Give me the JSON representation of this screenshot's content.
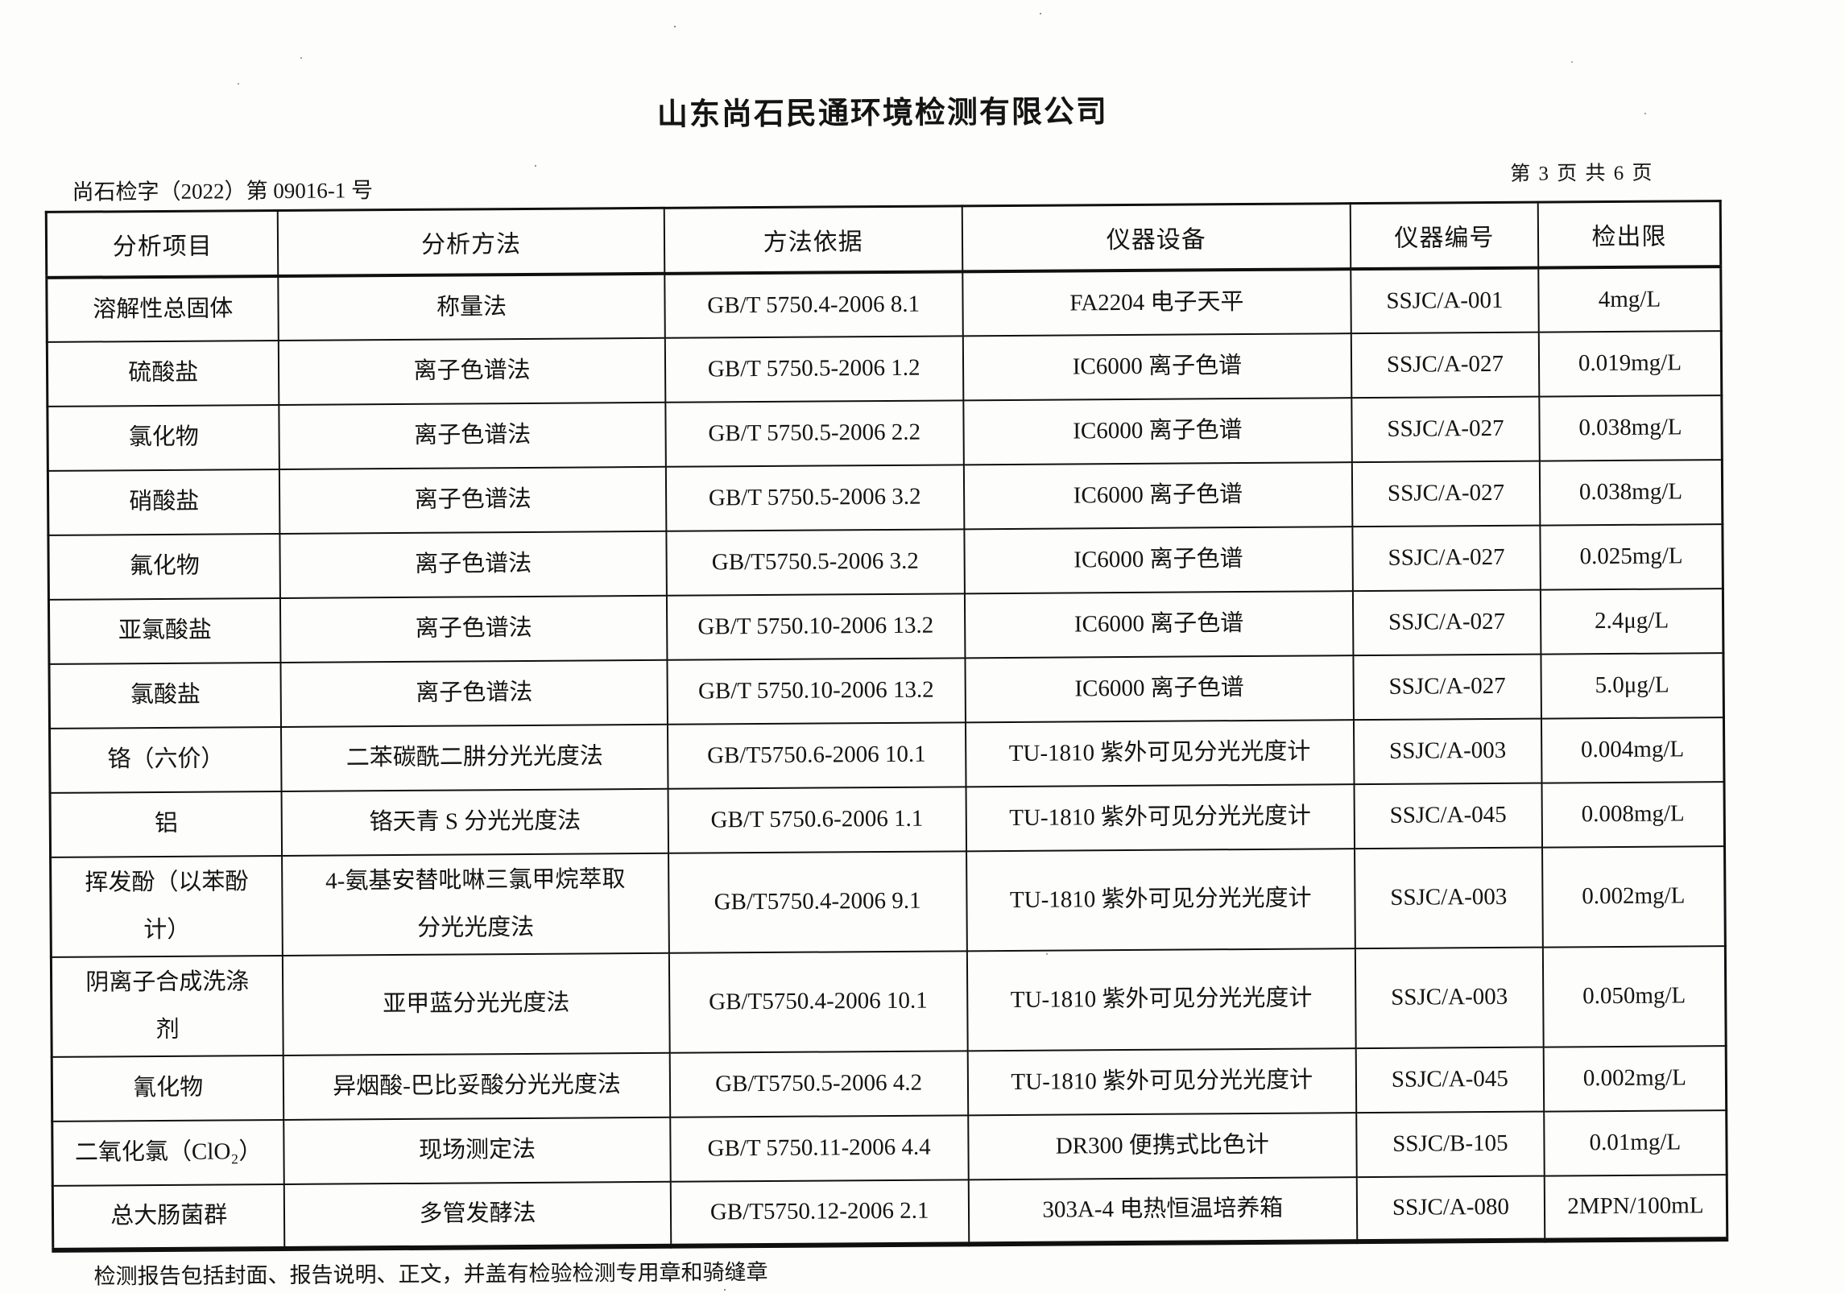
{
  "page": {
    "company_title": "山东尚石民通环境检测有限公司",
    "report_number": "尚石检字（2022）第 09016-1 号",
    "page_indicator": "第 3 页 共 6 页",
    "footer_note": "检测报告包括封面、报告说明、正文，并盖有检验检测专用章和骑缝章"
  },
  "table": {
    "headers": [
      "分析项目",
      "分析方法",
      "方法依据",
      "仪器设备",
      "仪器编号",
      "检出限"
    ],
    "rows": [
      [
        "溶解性总固体",
        "称量法",
        "GB/T 5750.4-2006 8.1",
        "FA2204 电子天平",
        "SSJC/A-001",
        "4mg/L"
      ],
      [
        "硫酸盐",
        "离子色谱法",
        "GB/T 5750.5-2006 1.2",
        "IC6000 离子色谱",
        "SSJC/A-027",
        "0.019mg/L"
      ],
      [
        "氯化物",
        "离子色谱法",
        "GB/T 5750.5-2006 2.2",
        "IC6000 离子色谱",
        "SSJC/A-027",
        "0.038mg/L"
      ],
      [
        "硝酸盐",
        "离子色谱法",
        "GB/T 5750.5-2006 3.2",
        "IC6000 离子色谱",
        "SSJC/A-027",
        "0.038mg/L"
      ],
      [
        "氟化物",
        "离子色谱法",
        "GB/T5750.5-2006 3.2",
        "IC6000 离子色谱",
        "SSJC/A-027",
        "0.025mg/L"
      ],
      [
        "亚氯酸盐",
        "离子色谱法",
        "GB/T 5750.10-2006 13.2",
        "IC6000 离子色谱",
        "SSJC/A-027",
        "2.4μg/L"
      ],
      [
        "氯酸盐",
        "离子色谱法",
        "GB/T 5750.10-2006 13.2",
        "IC6000 离子色谱",
        "SSJC/A-027",
        "5.0μg/L"
      ],
      [
        "铬（六价）",
        "二苯碳酰二肼分光光度法",
        "GB/T5750.6-2006 10.1",
        "TU-1810 紫外可见分光光度计",
        "SSJC/A-003",
        "0.004mg/L"
      ],
      [
        "铝",
        "铬天青 S 分光光度法",
        "GB/T 5750.6-2006 1.1",
        "TU-1810 紫外可见分光光度计",
        "SSJC/A-045",
        "0.008mg/L"
      ],
      [
        "挥发酚（以苯酚\n计）",
        "4-氨基安替吡啉三氯甲烷萃取\n分光光度法",
        "GB/T5750.4-2006 9.1",
        "TU-1810 紫外可见分光光度计",
        "SSJC/A-003",
        "0.002mg/L"
      ],
      [
        "阴离子合成洗涤\n剂",
        "亚甲蓝分光光度法",
        "GB/T5750.4-2006 10.1",
        "TU-1810 紫外可见分光光度计",
        "SSJC/A-003",
        "0.050mg/L"
      ],
      [
        "氰化物",
        "异烟酸-巴比妥酸分光光度法",
        "GB/T5750.5-2006 4.2",
        "TU-1810 紫外可见分光光度计",
        "SSJC/A-045",
        "0.002mg/L"
      ],
      [
        "二氧化氯（ClO₂）",
        "现场测定法",
        "GB/T 5750.11-2006 4.4",
        "DR300 便携式比色计",
        "SSJC/B-105",
        "0.01mg/L"
      ],
      [
        "总大肠菌群",
        "多管发酵法",
        "GB/T5750.12-2006 2.1",
        "303A-4 电热恒温培养箱",
        "SSJC/A-080",
        "2MPN/100mL"
      ]
    ]
  }
}
